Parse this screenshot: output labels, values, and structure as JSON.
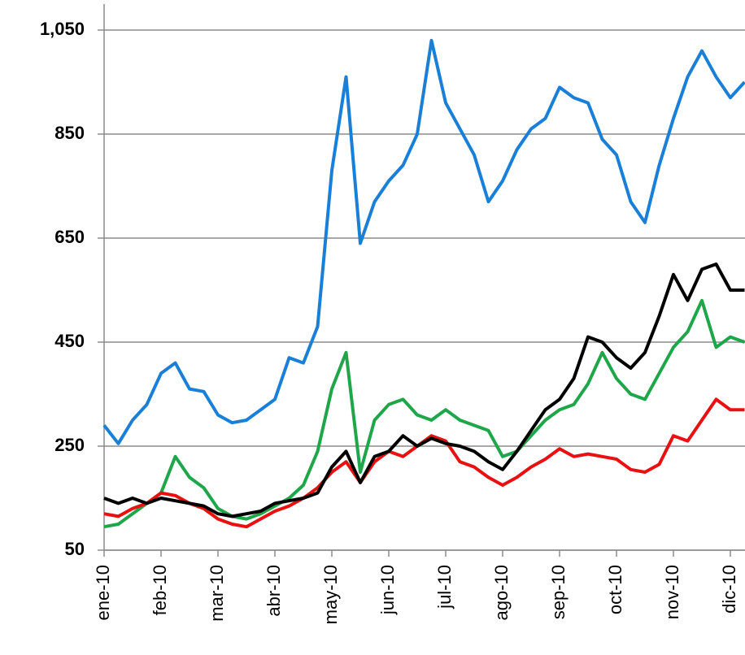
{
  "chart_data": {
    "type": "line",
    "categories": [
      "ene-10",
      null,
      null,
      null,
      "feb-10",
      null,
      null,
      null,
      "mar-10",
      null,
      null,
      null,
      "abr-10",
      null,
      null,
      null,
      "may-10",
      null,
      null,
      null,
      "jun-10",
      null,
      null,
      null,
      "jul-10",
      null,
      null,
      null,
      "ago-10",
      null,
      null,
      null,
      "sep-10",
      null,
      null,
      null,
      "oct-10",
      null,
      null,
      null,
      "nov-10",
      null,
      null,
      null,
      "dic-10",
      null
    ],
    "series": [
      {
        "color": "#1a7fd6",
        "values": [
          290,
          255,
          300,
          330,
          390,
          410,
          360,
          355,
          310,
          295,
          300,
          320,
          340,
          420,
          410,
          480,
          780,
          960,
          640,
          720,
          760,
          790,
          850,
          1030,
          910,
          860,
          810,
          720,
          760,
          820,
          860,
          880,
          940,
          920,
          910,
          840,
          810,
          720,
          680,
          790,
          880,
          960,
          1010,
          960,
          920,
          950
        ]
      },
      {
        "color": "#1fa64a",
        "values": [
          95,
          100,
          120,
          140,
          160,
          230,
          190,
          170,
          130,
          115,
          110,
          120,
          135,
          150,
          175,
          240,
          360,
          430,
          200,
          300,
          330,
          340,
          310,
          300,
          320,
          300,
          290,
          280,
          230,
          240,
          270,
          300,
          320,
          330,
          370,
          430,
          380,
          350,
          340,
          390,
          440,
          470,
          530,
          440,
          460,
          450
        ]
      },
      {
        "color": "#e81010",
        "values": [
          120,
          115,
          130,
          140,
          160,
          155,
          140,
          130,
          110,
          100,
          95,
          110,
          125,
          135,
          150,
          170,
          200,
          220,
          180,
          220,
          240,
          230,
          250,
          270,
          260,
          220,
          210,
          190,
          175,
          190,
          210,
          225,
          245,
          230,
          235,
          230,
          225,
          205,
          200,
          215,
          270,
          260,
          300,
          340,
          320,
          320
        ]
      },
      {
        "color": "#000000",
        "values": [
          150,
          140,
          150,
          140,
          150,
          145,
          140,
          135,
          120,
          115,
          120,
          125,
          140,
          145,
          150,
          160,
          210,
          240,
          180,
          230,
          240,
          270,
          250,
          265,
          255,
          250,
          240,
          220,
          205,
          240,
          280,
          320,
          340,
          380,
          460,
          450,
          420,
          400,
          430,
          500,
          580,
          530,
          590,
          600,
          550,
          550
        ]
      }
    ],
    "ylim": [
      50,
      1100
    ],
    "yticks": [
      50,
      250,
      450,
      650,
      850,
      {
        "value": 1050,
        "label": "1,050"
      }
    ],
    "grid": true
  }
}
